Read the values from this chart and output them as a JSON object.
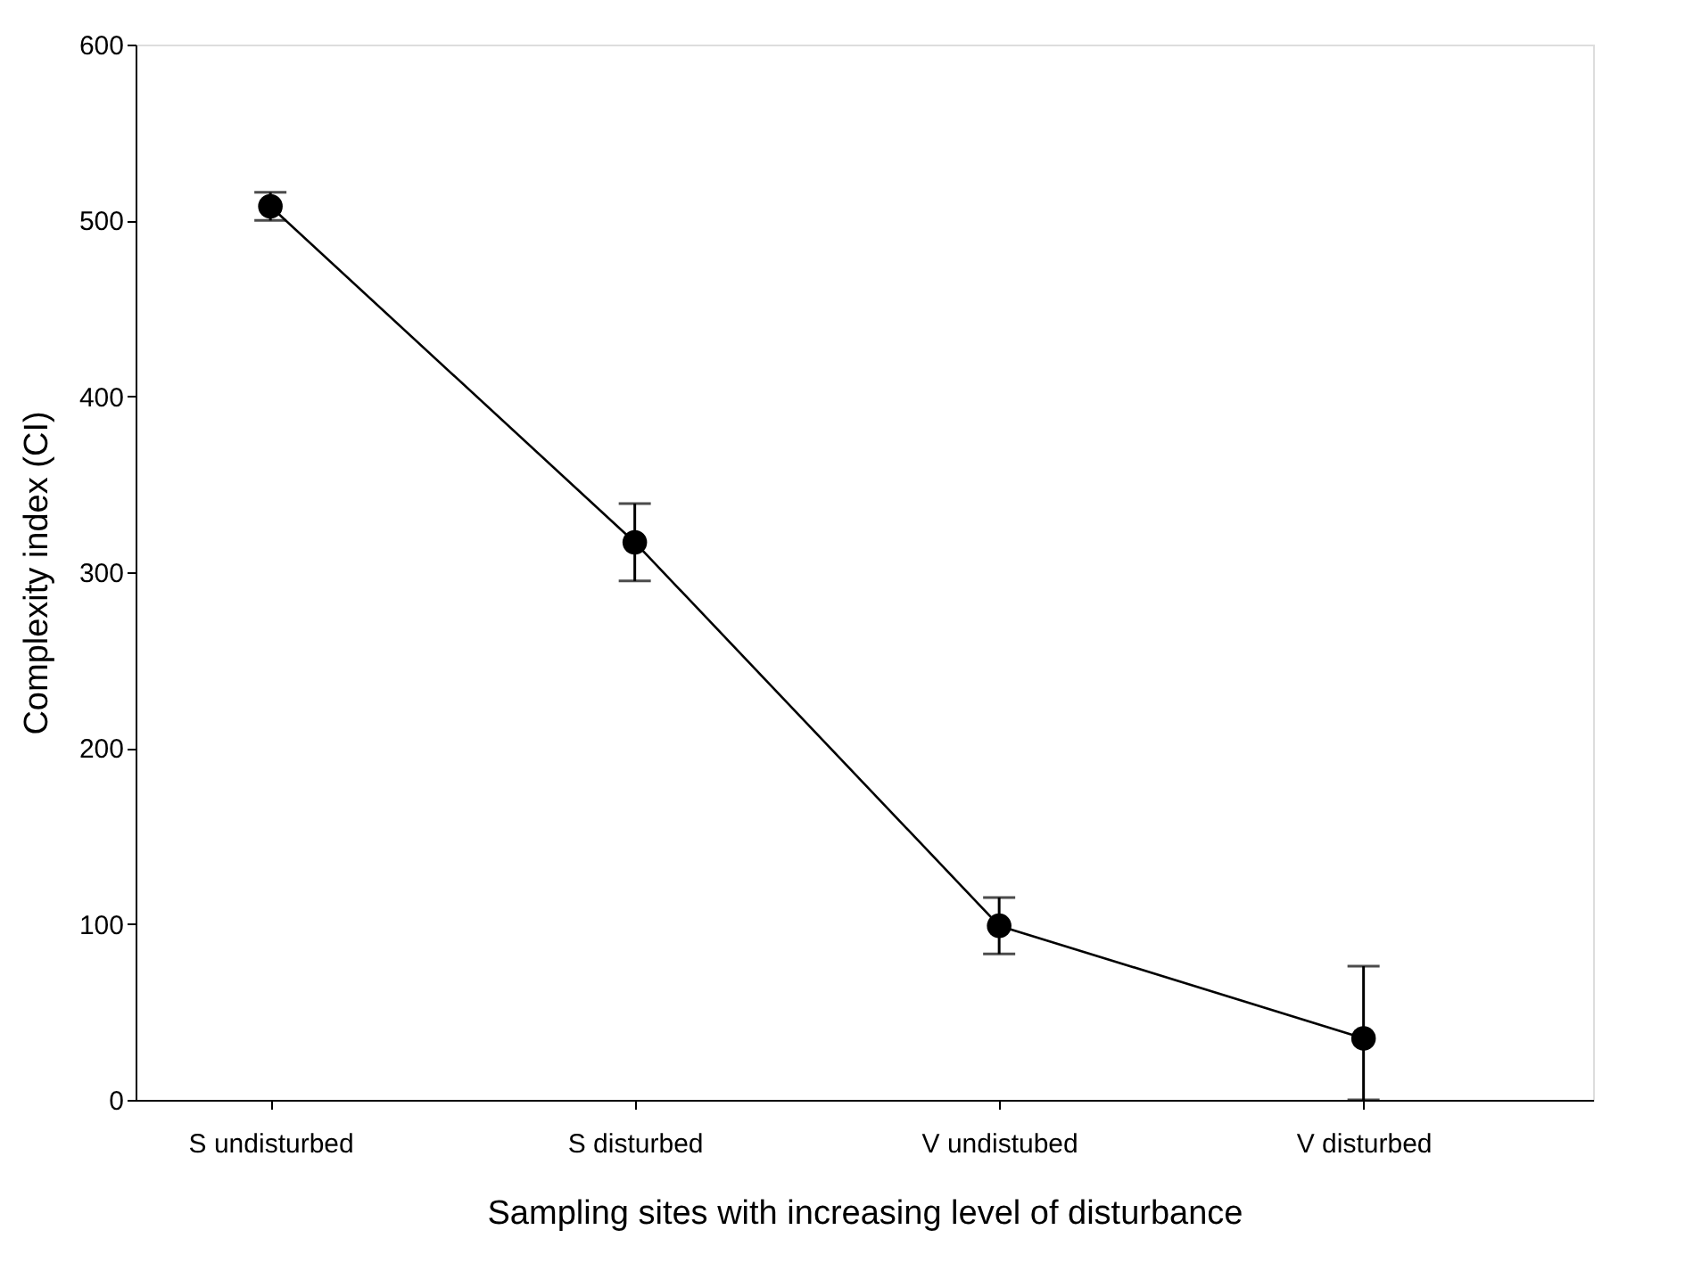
{
  "chart_data": {
    "type": "line",
    "xlabel": "Sampling sites with increasing level of disturbance",
    "ylabel": "Complexity index (CI)",
    "categories": [
      "S undisturbed",
      "S disturbed",
      "V undistubed",
      "V disturbed"
    ],
    "values": [
      508,
      317,
      99,
      35
    ],
    "errors": [
      8,
      22,
      16,
      [
        0,
        76
      ]
    ],
    "color": "#000000",
    "marker": "circle",
    "line_style": "solid",
    "grid": false,
    "ylim": [
      0,
      600
    ],
    "yticks": [
      0,
      100,
      200,
      300,
      400,
      500,
      600
    ]
  }
}
